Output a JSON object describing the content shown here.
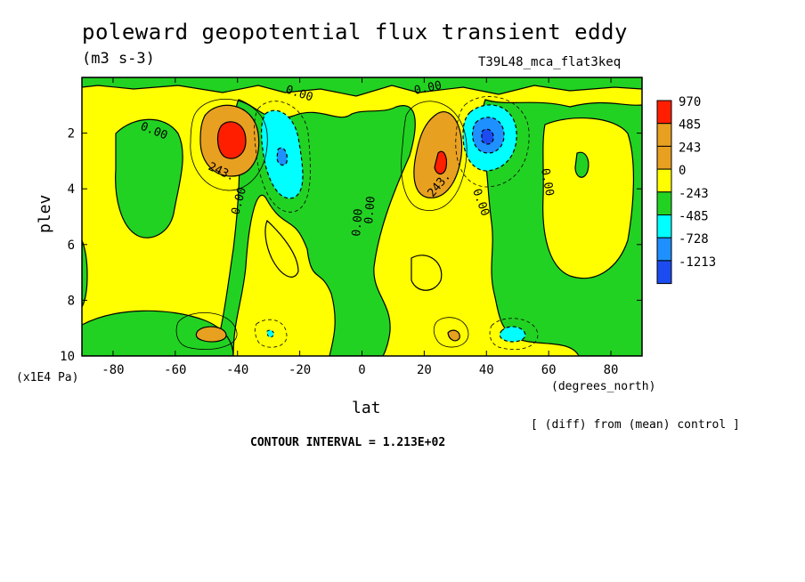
{
  "header": {
    "title": "poleward geopotential flux transient eddy",
    "units": "(m3 s-3)",
    "experiment": "T39L48_mca_flat3keq"
  },
  "footer": {
    "diff_note": "[ (diff) from (mean) control ]",
    "contour_interval": "CONTOUR INTERVAL = 1.213E+02"
  },
  "colors": {
    "red": "#ff1f00",
    "orange": "#e8a020",
    "yellow": "#ffff00",
    "green": "#22d222",
    "cyan": "#00ffff",
    "blue_mid": "#1e90ff",
    "blue_dark": "#1c4cf0"
  },
  "chart_data": {
    "type": "heatmap",
    "subtype": "filled-contour",
    "title": "poleward geopotential flux transient eddy",
    "xlabel": "lat",
    "xunit": "(degrees_north)",
    "ylabel": "plev",
    "yunit": "(x1E4 Pa)",
    "xlim": [
      -90,
      90
    ],
    "ylim": [
      10,
      0
    ],
    "x_ticks": [
      -80,
      -60,
      -40,
      -20,
      0,
      20,
      40,
      60,
      80
    ],
    "y_ticks": [
      2,
      4,
      6,
      8,
      10
    ],
    "contour_labels": [
      "0.00",
      "0.00",
      "0.00",
      "0.00",
      "0.00",
      "0.00",
      "0.00",
      "0.00",
      "243.",
      "243."
    ],
    "colorbar": {
      "labels": [
        "970",
        "485",
        "243",
        "0",
        "-243",
        "-485",
        "-728",
        "-1213"
      ],
      "colors": [
        "#ff1f00",
        "#e8a020",
        "#e8a020",
        "#ffff00",
        "#22d222",
        "#00ffff",
        "#1e90ff",
        "#1c4cf0"
      ]
    },
    "features": [
      {
        "sign": "positive",
        "lat": -40,
        "plev": 2.5,
        "peak": 970
      },
      {
        "sign": "negative",
        "lat": -27,
        "plev": 3.0,
        "peak": -485
      },
      {
        "sign": "positive",
        "lat": 25,
        "plev": 3.0,
        "peak": 970
      },
      {
        "sign": "negative",
        "lat": 40,
        "plev": 2.5,
        "peak": -1213
      },
      {
        "sign": "positive",
        "lat": -42,
        "plev": 9.2,
        "peak": 243
      },
      {
        "sign": "negative",
        "lat": 48,
        "plev": 9.2,
        "peak": -485
      }
    ]
  }
}
